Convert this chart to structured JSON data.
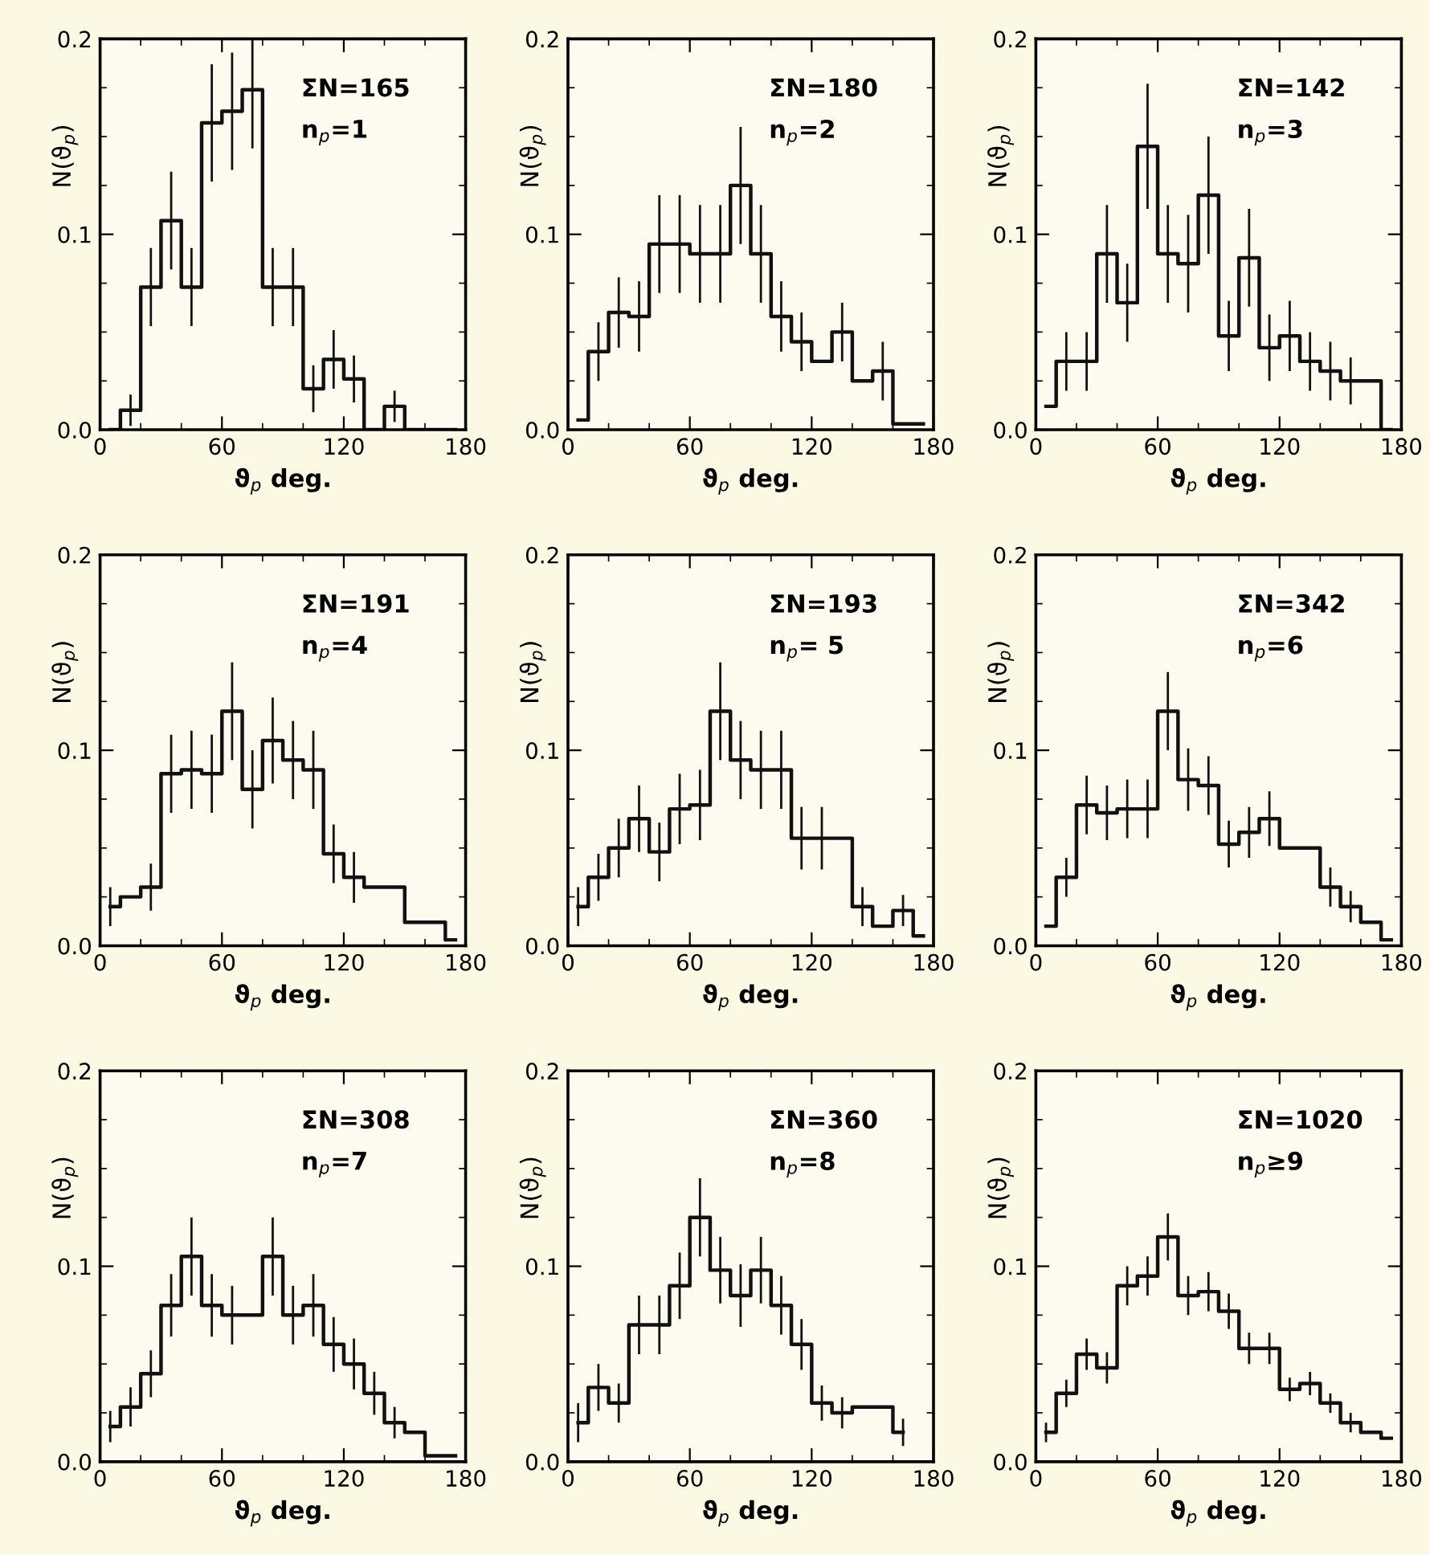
{
  "chart_data": [
    {
      "type": "step",
      "xlabel": "ϑ$_{p}$ deg.",
      "ylabel": "N(ϑ$_{p}$)",
      "annotations": [
        "ΣN=165",
        "n$_{p}$=1"
      ],
      "xlim": [
        0,
        180
      ],
      "ylim": [
        0,
        0.2
      ],
      "xticks": [
        0,
        60,
        120,
        180
      ],
      "yticks": [
        {
          "value": 0,
          "label": "0.0"
        },
        {
          "value": 0.1,
          "label": "0.1"
        },
        {
          "value": 0.2,
          "label": "0.2"
        }
      ],
      "color": "#111111",
      "x": [
        5,
        15,
        25,
        35,
        45,
        55,
        65,
        75,
        85,
        95,
        105,
        115,
        125,
        135,
        145,
        155,
        165,
        175
      ],
      "values": [
        0,
        0.01,
        0.073,
        0.107,
        0.073,
        0.157,
        0.163,
        0.174,
        0.073,
        0.073,
        0.021,
        0.036,
        0.026,
        0,
        0.012,
        0,
        0,
        0
      ],
      "errors": [
        null,
        0.008,
        0.02,
        0.025,
        0.02,
        0.03,
        0.03,
        0.03,
        0.02,
        0.02,
        0.012,
        0.015,
        0.012,
        null,
        0.008,
        null,
        null,
        null
      ]
    },
    {
      "type": "step",
      "xlabel": "ϑ$_{p}$ deg.",
      "ylabel": "N(ϑ$_{p}$)",
      "annotations": [
        "ΣN=180",
        "n$_{p}$=2"
      ],
      "xlim": [
        0,
        180
      ],
      "ylim": [
        0,
        0.2
      ],
      "xticks": [
        0,
        60,
        120,
        180
      ],
      "yticks": [
        {
          "value": 0,
          "label": "0.0"
        },
        {
          "value": 0.1,
          "label": "0.1"
        },
        {
          "value": 0.2,
          "label": "0.2"
        }
      ],
      "color": "#111111",
      "x": [
        5,
        15,
        25,
        35,
        45,
        55,
        65,
        75,
        85,
        95,
        105,
        115,
        125,
        135,
        145,
        155,
        165,
        175
      ],
      "values": [
        0.005,
        0.04,
        0.06,
        0.058,
        0.095,
        0.095,
        0.09,
        0.09,
        0.125,
        0.09,
        0.058,
        0.045,
        0.035,
        0.05,
        0.025,
        0.03,
        0.003,
        0.003
      ],
      "errors": [
        null,
        0.015,
        0.018,
        0.018,
        0.025,
        0.025,
        0.025,
        0.025,
        0.03,
        0.025,
        0.018,
        0.015,
        null,
        0.015,
        null,
        0.015,
        null,
        null
      ]
    },
    {
      "type": "step",
      "xlabel": "ϑ$_{p}$ deg.",
      "ylabel": "N(ϑ$_{p}$)",
      "annotations": [
        "ΣN=142",
        "n$_{p}$=3"
      ],
      "xlim": [
        0,
        180
      ],
      "ylim": [
        0,
        0.2
      ],
      "xticks": [
        0,
        60,
        120,
        180
      ],
      "yticks": [
        {
          "value": 0,
          "label": "0.0"
        },
        {
          "value": 0.1,
          "label": "0.1"
        },
        {
          "value": 0.2,
          "label": "0.2"
        }
      ],
      "color": "#111111",
      "x": [
        5,
        15,
        25,
        35,
        45,
        55,
        65,
        75,
        85,
        95,
        105,
        115,
        125,
        135,
        145,
        155,
        165,
        175
      ],
      "values": [
        0.012,
        0.035,
        0.035,
        0.09,
        0.065,
        0.145,
        0.09,
        0.085,
        0.12,
        0.048,
        0.088,
        0.042,
        0.048,
        0.035,
        0.03,
        0.025,
        0.025,
        0
      ],
      "errors": [
        null,
        0.015,
        0.015,
        0.025,
        0.02,
        0.032,
        0.025,
        0.025,
        0.03,
        0.018,
        0.025,
        0.017,
        0.018,
        0.015,
        0.015,
        0.012,
        null,
        null
      ]
    },
    {
      "type": "step",
      "xlabel": "ϑ$_{p}$ deg.",
      "ylabel": "N(ϑ$_{p}$)",
      "annotations": [
        "ΣN=191",
        "n$_{p}$=4"
      ],
      "xlim": [
        0,
        180
      ],
      "ylim": [
        0,
        0.2
      ],
      "xticks": [
        0,
        60,
        120,
        180
      ],
      "yticks": [
        {
          "value": 0,
          "label": "0.0"
        },
        {
          "value": 0.1,
          "label": "0.1"
        },
        {
          "value": 0.2,
          "label": "0.2"
        }
      ],
      "color": "#111111",
      "x": [
        5,
        15,
        25,
        35,
        45,
        55,
        65,
        75,
        85,
        95,
        105,
        115,
        125,
        135,
        145,
        155,
        165,
        175
      ],
      "values": [
        0.02,
        0.025,
        0.03,
        0.088,
        0.09,
        0.088,
        0.12,
        0.08,
        0.105,
        0.095,
        0.09,
        0.047,
        0.035,
        0.03,
        0.03,
        0.012,
        0.012,
        0.003
      ],
      "errors": [
        0.01,
        null,
        0.012,
        0.02,
        0.02,
        0.02,
        0.025,
        0.02,
        0.022,
        0.02,
        0.02,
        0.015,
        0.013,
        null,
        null,
        null,
        null,
        null
      ]
    },
    {
      "type": "step",
      "xlabel": "ϑ$_{p}$ deg.",
      "ylabel": "N(ϑ$_{p}$)",
      "annotations": [
        "ΣN=193",
        "n$_{p}$= 5"
      ],
      "xlim": [
        0,
        180
      ],
      "ylim": [
        0,
        0.2
      ],
      "xticks": [
        0,
        60,
        120,
        180
      ],
      "yticks": [
        {
          "value": 0,
          "label": "0.0"
        },
        {
          "value": 0.1,
          "label": "0.1"
        },
        {
          "value": 0.2,
          "label": "0.2"
        }
      ],
      "color": "#111111",
      "x": [
        5,
        15,
        25,
        35,
        45,
        55,
        65,
        75,
        85,
        95,
        105,
        115,
        125,
        135,
        145,
        155,
        165,
        175
      ],
      "values": [
        0.02,
        0.035,
        0.05,
        0.065,
        0.048,
        0.07,
        0.072,
        0.12,
        0.095,
        0.09,
        0.09,
        0.055,
        0.055,
        0.055,
        0.02,
        0.01,
        0.018,
        0.005
      ],
      "errors": [
        0.01,
        0.012,
        0.015,
        0.017,
        0.015,
        0.018,
        0.018,
        0.025,
        0.02,
        0.02,
        0.02,
        0.016,
        0.016,
        null,
        0.01,
        null,
        0.008,
        null
      ]
    },
    {
      "type": "step",
      "xlabel": "ϑ$_{p}$ deg.",
      "ylabel": "N(ϑ$_{p}$)",
      "annotations": [
        "ΣN=342",
        "n$_{p}$=6"
      ],
      "xlim": [
        0,
        180
      ],
      "ylim": [
        0,
        0.2
      ],
      "xticks": [
        0,
        60,
        120,
        180
      ],
      "yticks": [
        {
          "value": 0,
          "label": "0.0"
        },
        {
          "value": 0.1,
          "label": "0.1"
        },
        {
          "value": 0.2,
          "label": "0.2"
        }
      ],
      "color": "#111111",
      "x": [
        5,
        15,
        25,
        35,
        45,
        55,
        65,
        75,
        85,
        95,
        105,
        115,
        125,
        135,
        145,
        155,
        165,
        175
      ],
      "values": [
        0.01,
        0.035,
        0.072,
        0.068,
        0.07,
        0.07,
        0.12,
        0.085,
        0.082,
        0.052,
        0.058,
        0.065,
        0.05,
        0.05,
        0.03,
        0.02,
        0.012,
        0.003
      ],
      "errors": [
        null,
        0.01,
        0.015,
        0.014,
        0.015,
        0.015,
        0.02,
        0.016,
        0.015,
        0.012,
        0.013,
        0.014,
        null,
        null,
        0.01,
        0.008,
        null,
        null
      ]
    },
    {
      "type": "step",
      "xlabel": "ϑ$_{p}$ deg.",
      "ylabel": "N(ϑ$_{p}$)",
      "annotations": [
        "ΣN=308",
        "n$_{p}$=7"
      ],
      "xlim": [
        0,
        180
      ],
      "ylim": [
        0,
        0.2
      ],
      "xticks": [
        0,
        60,
        120,
        180
      ],
      "yticks": [
        {
          "value": 0,
          "label": "0.0"
        },
        {
          "value": 0.1,
          "label": "0.1"
        },
        {
          "value": 0.2,
          "label": "0.2"
        }
      ],
      "color": "#111111",
      "x": [
        5,
        15,
        25,
        35,
        45,
        55,
        65,
        75,
        85,
        95,
        105,
        115,
        125,
        135,
        145,
        155,
        165,
        175
      ],
      "values": [
        0.018,
        0.028,
        0.045,
        0.08,
        0.105,
        0.08,
        0.075,
        0.075,
        0.105,
        0.075,
        0.08,
        0.06,
        0.05,
        0.035,
        0.02,
        0.015,
        0.003,
        0.003
      ],
      "errors": [
        0.008,
        0.01,
        0.012,
        0.016,
        0.02,
        0.016,
        0.015,
        null,
        0.02,
        0.015,
        0.016,
        0.014,
        0.013,
        0.011,
        0.008,
        null,
        null,
        null
      ]
    },
    {
      "type": "step",
      "xlabel": "ϑ$_{p}$ deg.",
      "ylabel": "N(ϑ$_{p}$)",
      "annotations": [
        "ΣN=360",
        "n$_{p}$=8"
      ],
      "xlim": [
        0,
        180
      ],
      "ylim": [
        0,
        0.2
      ],
      "xticks": [
        0,
        60,
        120,
        180
      ],
      "yticks": [
        {
          "value": 0,
          "label": "0.0"
        },
        {
          "value": 0.1,
          "label": "0.1"
        },
        {
          "value": 0.2,
          "label": "0.2"
        }
      ],
      "color": "#111111",
      "x": [
        5,
        15,
        25,
        35,
        45,
        55,
        65,
        75,
        85,
        95,
        105,
        115,
        125,
        135,
        145,
        155,
        165
      ],
      "values": [
        0.02,
        0.038,
        0.03,
        0.07,
        0.07,
        0.09,
        0.125,
        0.098,
        0.085,
        0.098,
        0.08,
        0.06,
        0.03,
        0.025,
        0.028,
        0.028,
        0.015
      ],
      "errors": [
        0.01,
        0.012,
        0.01,
        0.015,
        0.015,
        0.017,
        0.02,
        0.017,
        0.016,
        0.017,
        0.015,
        0.013,
        0.009,
        0.008,
        null,
        null,
        0.007
      ]
    },
    {
      "type": "step",
      "xlabel": "ϑ$_{p}$ deg.",
      "ylabel": "N(ϑ$_{p}$)",
      "annotations": [
        "ΣN=1020",
        "n$_{p}$≥9"
      ],
      "xlim": [
        0,
        180
      ],
      "ylim": [
        0,
        0.2
      ],
      "xticks": [
        0,
        60,
        120,
        180
      ],
      "yticks": [
        {
          "value": 0,
          "label": "0.0"
        },
        {
          "value": 0.1,
          "label": "0.1"
        },
        {
          "value": 0.2,
          "label": "0.2"
        }
      ],
      "color": "#111111",
      "x": [
        5,
        15,
        25,
        35,
        45,
        55,
        65,
        75,
        85,
        95,
        105,
        115,
        125,
        135,
        145,
        155,
        165,
        175
      ],
      "values": [
        0.015,
        0.035,
        0.055,
        0.048,
        0.09,
        0.095,
        0.115,
        0.085,
        0.087,
        0.077,
        0.058,
        0.058,
        0.037,
        0.04,
        0.03,
        0.02,
        0.015,
        0.012
      ],
      "errors": [
        0.005,
        0.007,
        0.008,
        0.008,
        0.01,
        0.01,
        0.012,
        0.01,
        0.01,
        0.009,
        0.008,
        0.008,
        0.006,
        0.006,
        0.005,
        0.005,
        null,
        null
      ]
    }
  ]
}
